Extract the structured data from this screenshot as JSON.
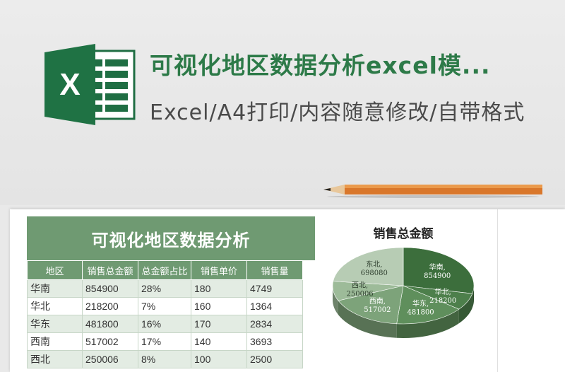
{
  "header": {
    "title": "可视化地区数据分析excel模...",
    "subtitle": "Excel/A4打印/内容随意修改/自带格式"
  },
  "sheet": {
    "table_title": "可视化地区数据分析",
    "columns": [
      "地区",
      "销售总金额",
      "总金额占比",
      "销售单价",
      "销售量"
    ],
    "rows": [
      [
        "华南",
        "854900",
        "28%",
        "180",
        "4749"
      ],
      [
        "华北",
        "218200",
        "7%",
        "160",
        "1364"
      ],
      [
        "华东",
        "481800",
        "16%",
        "170",
        "2834"
      ],
      [
        "西南",
        "517002",
        "17%",
        "140",
        "3693"
      ],
      [
        "西北",
        "250006",
        "8%",
        "100",
        "2500"
      ]
    ]
  },
  "chart_data": {
    "type": "pie",
    "title": "销售总金额",
    "categories": [
      "华南",
      "华北",
      "华东",
      "西南",
      "西北",
      "东北"
    ],
    "values": [
      854900,
      218200,
      481800,
      517002,
      250006,
      698080
    ],
    "colors": [
      "#3c6e3c",
      "#4d7f4b",
      "#5f8f5c",
      "#7da37a",
      "#9dbb99",
      "#b7ccb4"
    ]
  },
  "colors": {
    "brand_green": "#2d7a48",
    "table_header": "#6f9a72"
  }
}
